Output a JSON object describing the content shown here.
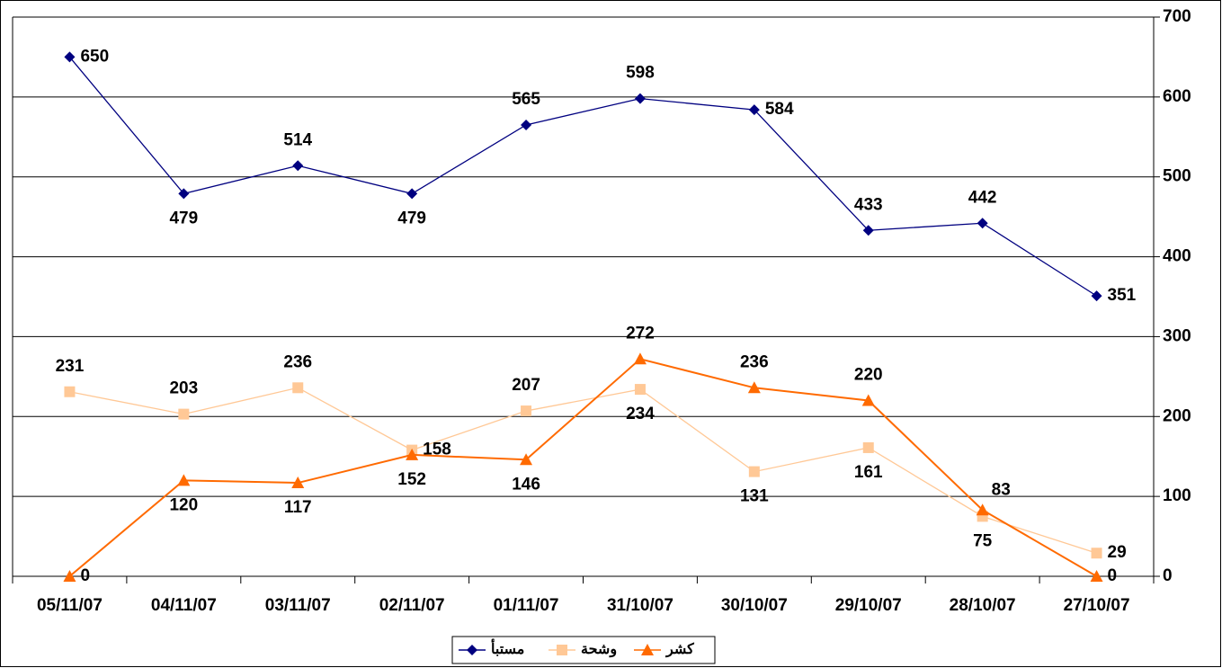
{
  "chart_data": {
    "type": "line",
    "categories": [
      "05/11/07",
      "04/11/07",
      "03/11/07",
      "02/11/07",
      "01/11/07",
      "31/10/07",
      "30/10/07",
      "29/10/07",
      "28/10/07",
      "27/10/07"
    ],
    "series": [
      {
        "name": "مستبأ",
        "color": "#000080",
        "marker": "diamond",
        "values": [
          650,
          479,
          514,
          479,
          565,
          598,
          584,
          433,
          442,
          351
        ]
      },
      {
        "name": "وشحة",
        "color": "#ffc896",
        "marker": "square",
        "values": [
          231,
          203,
          236,
          158,
          207,
          234,
          131,
          161,
          75,
          29
        ]
      },
      {
        "name": "كشر",
        "color": "#ff6a00",
        "marker": "triangle",
        "values": [
          0,
          120,
          117,
          152,
          146,
          272,
          236,
          220,
          83,
          0
        ]
      }
    ],
    "ylim": [
      0,
      700
    ],
    "yticks": [
      0,
      100,
      200,
      300,
      400,
      500,
      600,
      700
    ],
    "grid": true,
    "y_axis_side": "right",
    "legend": "bottom"
  }
}
